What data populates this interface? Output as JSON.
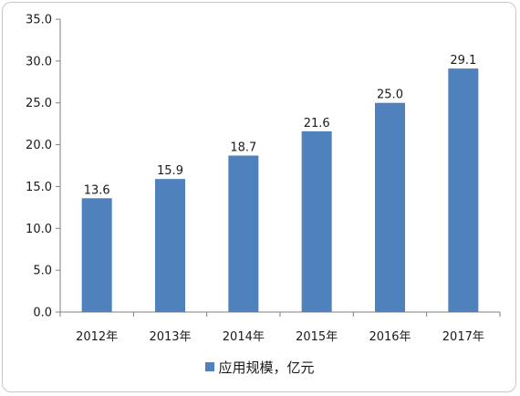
{
  "chart_data": {
    "type": "bar",
    "categories": [
      "2012年",
      "2013年",
      "2014年",
      "2015年",
      "2016年",
      "2017年"
    ],
    "series": [
      {
        "name": "应用规模，亿元",
        "values": [
          13.6,
          15.9,
          18.7,
          21.6,
          25.0,
          29.1
        ],
        "color": "#4f81bd"
      }
    ],
    "value_labels": [
      "13.6",
      "15.9",
      "18.7",
      "21.6",
      "25.0",
      "29.1"
    ],
    "ylim": [
      0,
      35
    ],
    "yticks": [
      "0.0",
      "5.0",
      "10.0",
      "15.0",
      "20.0",
      "25.0",
      "30.0",
      "35.0"
    ],
    "grid": false,
    "legend_position": "bottom"
  }
}
